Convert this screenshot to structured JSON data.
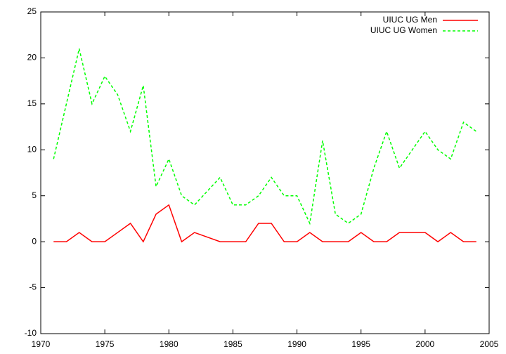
{
  "chart_data": {
    "type": "line",
    "x": [
      1971,
      1972,
      1973,
      1974,
      1975,
      1976,
      1977,
      1978,
      1979,
      1980,
      1981,
      1982,
      1983,
      1984,
      1985,
      1986,
      1987,
      1988,
      1989,
      1990,
      1991,
      1992,
      1993,
      1994,
      1995,
      1996,
      1997,
      1998,
      1999,
      2000,
      2001,
      2002,
      2003,
      2004
    ],
    "series": [
      {
        "name": "UIUC UG Men",
        "color": "#ff0000",
        "dash": false,
        "values": [
          0,
          0,
          1,
          0,
          0,
          1,
          2,
          0,
          3,
          4,
          0,
          1,
          0.5,
          0,
          0,
          0,
          2,
          2,
          0,
          0,
          1,
          0,
          0,
          0,
          1,
          0,
          0,
          1,
          1,
          1,
          0,
          1,
          0,
          0
        ]
      },
      {
        "name": "UIUC UG Women",
        "color": "#00ff00",
        "dash": true,
        "values": [
          9,
          15,
          21,
          15,
          18,
          16,
          12,
          17,
          6,
          9,
          5,
          4,
          5.5,
          7,
          4,
          4,
          5,
          7,
          5,
          5,
          2,
          11,
          3,
          2,
          3,
          8,
          12,
          8,
          10,
          12,
          10,
          9,
          13,
          12
        ]
      }
    ],
    "xlim": [
      1970,
      2005
    ],
    "xticks": [
      1970,
      1975,
      1980,
      1985,
      1990,
      1995,
      2000,
      2005
    ],
    "ylim": [
      -10,
      25
    ],
    "yticks": [
      -10,
      -5,
      0,
      5,
      10,
      15,
      20,
      25
    ],
    "legend": "top-right"
  }
}
